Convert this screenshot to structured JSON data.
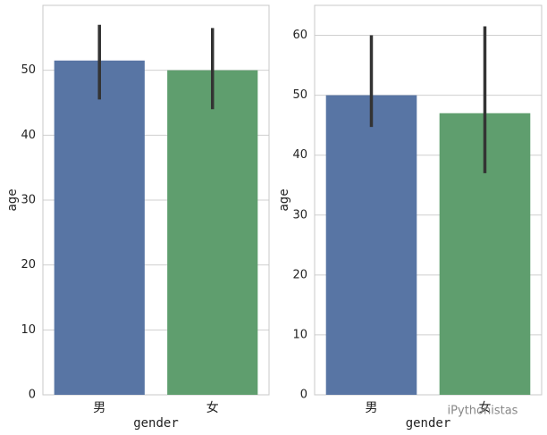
{
  "chart_data": [
    {
      "type": "bar",
      "xlabel": "gender",
      "ylabel": "age",
      "categories": [
        "男",
        "女"
      ],
      "values": [
        51.5,
        50.0
      ],
      "ci_low": [
        45.5,
        44.0
      ],
      "ci_high": [
        57.0,
        56.5
      ],
      "colors": [
        "#5875a4",
        "#5f9e6e"
      ],
      "ylim": [
        0,
        60
      ],
      "yticks": [
        0,
        10,
        20,
        30,
        40,
        50
      ],
      "grid": true
    },
    {
      "type": "bar",
      "xlabel": "gender",
      "ylabel": "age",
      "categories": [
        "男",
        "女"
      ],
      "values": [
        50.0,
        47.0
      ],
      "ci_low": [
        44.7,
        37.0
      ],
      "ci_high": [
        60.0,
        61.5
      ],
      "colors": [
        "#5875a4",
        "#5f9e6e"
      ],
      "ylim": [
        0,
        65
      ],
      "yticks": [
        0,
        10,
        20,
        30,
        40,
        50,
        60
      ],
      "grid": true
    }
  ],
  "watermark": "iPythonistas"
}
